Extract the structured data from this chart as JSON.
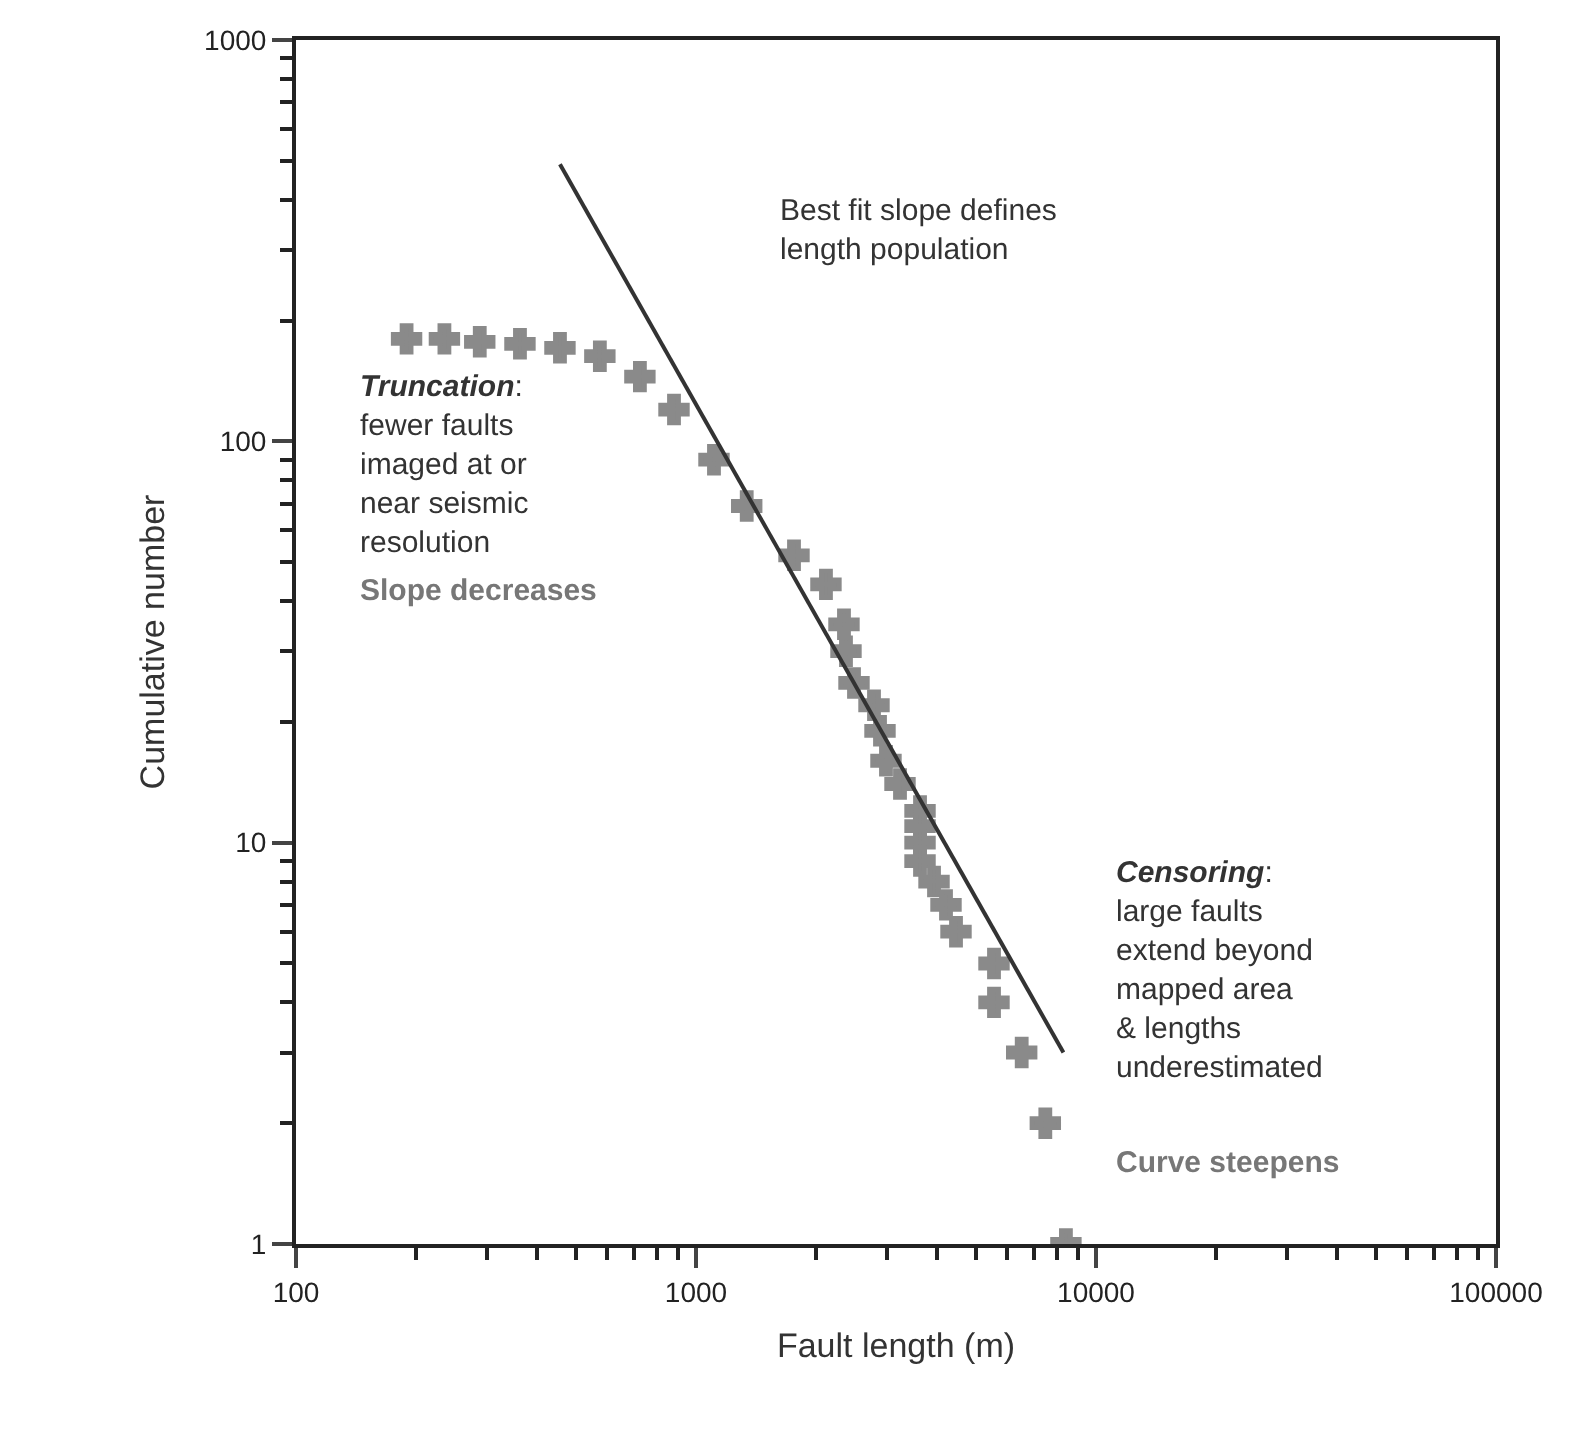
{
  "chart_data": {
    "type": "scatter",
    "xlabel": "Fault length (m)",
    "ylabel": "Cumulative number",
    "log": "xy",
    "xlim": [
      100,
      100000
    ],
    "ylim": [
      1,
      1000
    ],
    "xticks": [
      100,
      1000,
      10000,
      100000
    ],
    "yticks": [
      1,
      10,
      100,
      1000
    ],
    "marker": "cross",
    "series": [
      {
        "color": "#8a8a8a",
        "x": [
          189,
          235,
          288,
          363,
          457,
          575,
          724,
          881,
          1109,
          1339,
          1758,
          2113,
          2344,
          2371,
          2483,
          2786,
          2884,
          2985,
          3236,
          3631,
          3631,
          3631,
          3631,
          3936,
          4217,
          4467,
          5559,
          5559,
          6520,
          7470,
          8410
        ],
        "values": [
          180,
          180,
          177,
          175,
          171,
          163,
          145,
          120,
          90,
          69,
          52,
          44,
          35,
          30,
          25,
          22,
          19,
          16,
          14,
          12,
          11,
          10,
          9,
          8,
          7,
          6,
          5,
          4,
          3,
          2,
          1
        ]
      },
      {
        "type": "line",
        "marker": "none",
        "color": "#333333",
        "x": [
          457,
          8290
        ],
        "values": [
          490,
          3.0
        ]
      }
    ],
    "annotations": [
      "Best fit slope defines\nlength population",
      "Truncation: fewer faults\nimaged at or\nnear seismic\nresolution",
      "Slope decreases",
      "Censoring:\nlarge faults\nextend beyond\nmapped area\n& lengths\nunderestimated",
      "Curve steepens"
    ]
  }
}
